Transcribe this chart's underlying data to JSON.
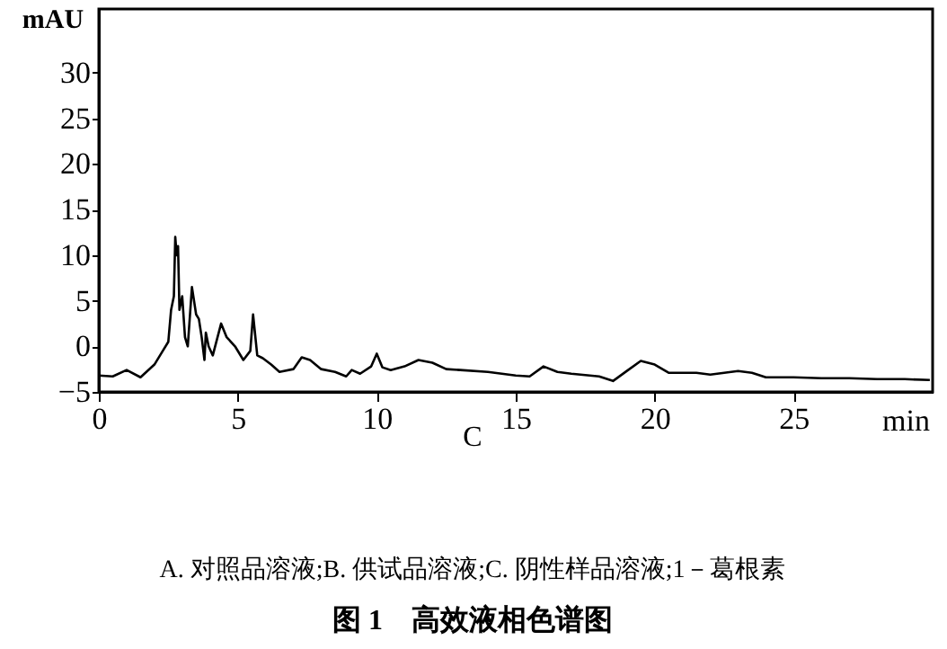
{
  "chart_data": {
    "type": "line",
    "title": "图 1　高效液相色谱图",
    "xlabel": "min",
    "ylabel": "mAU",
    "annotations": [
      "C",
      "A. 对照品溶液;B. 供试品溶液;C. 阴性样品溶液;1－葛根素"
    ],
    "xlim": [
      0,
      30
    ],
    "xticks": [
      0,
      5,
      10,
      15,
      20,
      25
    ],
    "ylim": [
      -5,
      37
    ],
    "yticks": [
      -5,
      0,
      5,
      10,
      15,
      20,
      25,
      30
    ],
    "grid": false,
    "marker": "none",
    "line_style": "solid",
    "series": [
      {
        "color": "#000000",
        "x": [
          0,
          0.5,
          1.0,
          1.5,
          2.0,
          2.3,
          2.5,
          2.6,
          2.7,
          2.75,
          2.8,
          2.85,
          2.9,
          3.0,
          3.1,
          3.2,
          3.35,
          3.5,
          3.6,
          3.7,
          3.8,
          3.85,
          3.95,
          4.1,
          4.4,
          4.6,
          4.9,
          5.2,
          5.45,
          5.55,
          5.7,
          5.9,
          6.2,
          6.5,
          7.0,
          7.3,
          7.6,
          8.0,
          8.5,
          8.9,
          9.1,
          9.4,
          9.8,
          10.0,
          10.2,
          10.5,
          11.0,
          11.5,
          12,
          12.5,
          13,
          14,
          15,
          15.5,
          16,
          16.5,
          17,
          18,
          18.5,
          19.0,
          19.5,
          20,
          20.5,
          21.5,
          22,
          23,
          23.5,
          24,
          25,
          26,
          27,
          28,
          29,
          29.9
        ],
        "values": [
          -3.2,
          -3.3,
          -2.6,
          -3.4,
          -2.0,
          -0.5,
          0.5,
          4,
          5.5,
          12,
          10,
          11,
          4,
          5.5,
          1,
          0,
          6.5,
          3.5,
          3,
          1,
          -1.5,
          1.5,
          0,
          -1,
          2.5,
          1,
          0,
          -1.5,
          -0.5,
          3.5,
          -1,
          -1.3,
          -2,
          -2.8,
          -2.5,
          -1.2,
          -1.5,
          -2.5,
          -2.8,
          -3.3,
          -2.6,
          -3.0,
          -2.2,
          -0.8,
          -2.3,
          -2.6,
          -2.2,
          -1.5,
          -1.8,
          -2.5,
          -2.6,
          -2.8,
          -3.2,
          -3.3,
          -2.2,
          -2.8,
          -3.0,
          -3.3,
          -3.8,
          -2.7,
          -1.6,
          -2.0,
          -2.9,
          -2.9,
          -3.1,
          -2.7,
          -2.9,
          -3.4,
          -3.4,
          -3.5,
          -3.5,
          -3.6,
          -3.6,
          -3.7
        ]
      }
    ]
  }
}
